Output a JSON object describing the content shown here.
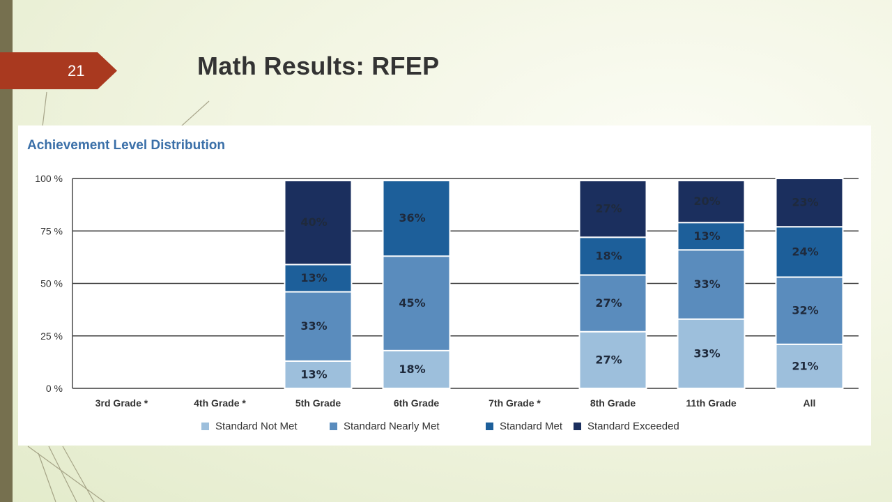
{
  "slide": {
    "number": "21",
    "title": "Math Results: RFEP"
  },
  "chart_data": {
    "type": "bar",
    "stacked": true,
    "title": "Achievement Level Distribution",
    "categories": [
      "3rd Grade *",
      "4th Grade *",
      "5th Grade",
      "6th Grade",
      "7th Grade *",
      "8th Grade",
      "11th Grade",
      "All"
    ],
    "ylim": [
      0,
      100
    ],
    "yticks": [
      0,
      25,
      50,
      75,
      100
    ],
    "ytick_labels": [
      "0 %",
      "25 %",
      "50 %",
      "75 %",
      "100 %"
    ],
    "grid": true,
    "legend_position": "bottom",
    "series": [
      {
        "name": "Standard Not Met",
        "color": "#9dbfdc",
        "values": [
          null,
          null,
          13,
          18,
          0,
          27,
          33,
          21
        ]
      },
      {
        "name": "Standard Nearly Met",
        "color": "#5a8cbd",
        "values": [
          null,
          null,
          33,
          45,
          0,
          27,
          33,
          32
        ]
      },
      {
        "name": "Standard Met",
        "color": "#1d5f9a",
        "values": [
          null,
          null,
          13,
          36,
          0,
          18,
          13,
          24
        ]
      },
      {
        "name": "Standard Exceeded",
        "color": "#1b2f5e",
        "values": [
          null,
          null,
          40,
          0,
          0,
          27,
          20,
          23
        ]
      }
    ],
    "data_labels": [
      {
        "category": "5th Grade",
        "series": "Standard Not Met",
        "text": "13%"
      },
      {
        "category": "5th Grade",
        "series": "Standard Nearly Met",
        "text": "33%"
      },
      {
        "category": "5th Grade",
        "series": "Standard Met",
        "text": "13%"
      },
      {
        "category": "5th Grade",
        "series": "Standard Exceeded",
        "text": "40%"
      },
      {
        "category": "6th Grade",
        "series": "Standard Not Met",
        "text": "18%"
      },
      {
        "category": "6th Grade",
        "series": "Standard Nearly Met",
        "text": "45%"
      },
      {
        "category": "6th Grade",
        "series": "Standard Met",
        "text": "36%"
      },
      {
        "category": "8th Grade",
        "series": "Standard Not Met",
        "text": "27%"
      },
      {
        "category": "8th Grade",
        "series": "Standard Nearly Met",
        "text": "27%"
      },
      {
        "category": "8th Grade",
        "series": "Standard Met",
        "text": "18%"
      },
      {
        "category": "8th Grade",
        "series": "Standard Exceeded",
        "text": "27%"
      },
      {
        "category": "11th Grade",
        "series": "Standard Not Met",
        "text": "33%"
      },
      {
        "category": "11th Grade",
        "series": "Standard Nearly Met",
        "text": "33%"
      },
      {
        "category": "11th Grade",
        "series": "Standard Met",
        "text": "13%"
      },
      {
        "category": "11th Grade",
        "series": "Standard Exceeded",
        "text": "20%"
      },
      {
        "category": "All",
        "series": "Standard Not Met",
        "text": "21%"
      },
      {
        "category": "All",
        "series": "Standard Nearly Met",
        "text": "32%"
      },
      {
        "category": "All",
        "series": "Standard Met",
        "text": "24%"
      },
      {
        "category": "All",
        "series": "Standard Exceeded",
        "text": "23%"
      }
    ]
  }
}
